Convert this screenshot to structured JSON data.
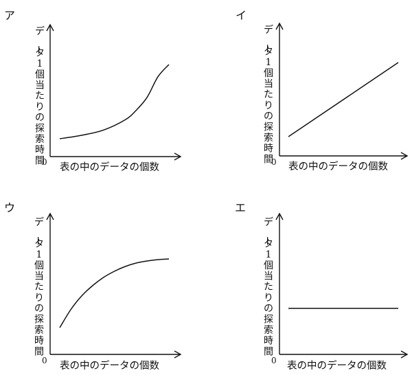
{
  "chart_data": [
    {
      "panel": "ア",
      "type": "line",
      "curve": "exponential-increase",
      "xlabel": "表の中のデータの個数",
      "ylabel": "データ1個当たりの探索時間",
      "origin": "0",
      "x": [
        0,
        0.2,
        0.4,
        0.6,
        0.7,
        0.8,
        0.9,
        1.0
      ],
      "y": [
        0.14,
        0.18,
        0.24,
        0.36,
        0.47,
        0.62,
        0.86,
        1.0
      ]
    },
    {
      "panel": "イ",
      "type": "line",
      "curve": "linear-increase",
      "xlabel": "表の中のデータの個数",
      "ylabel": "データ1個当たりの探索時間",
      "origin": "0",
      "x": [
        0,
        1.0
      ],
      "y": [
        0.13,
        1.0
      ]
    },
    {
      "panel": "ウ",
      "type": "line",
      "curve": "logarithmic-increase",
      "xlabel": "表の中のデータの個数",
      "ylabel": "データ1個当たりの探索時間",
      "origin": "0",
      "x": [
        0,
        0.1,
        0.2,
        0.3,
        0.4,
        0.5,
        0.6,
        0.7,
        0.8,
        0.9,
        1.0
      ],
      "y": [
        0.0,
        0.26,
        0.46,
        0.61,
        0.73,
        0.82,
        0.89,
        0.94,
        0.97,
        0.99,
        1.0
      ]
    },
    {
      "panel": "エ",
      "type": "line",
      "curve": "constant",
      "xlabel": "表の中のデータの個数",
      "ylabel": "データ1個当たりの探索時間",
      "origin": "0",
      "x": [
        0,
        1.0
      ],
      "y": [
        0.5,
        0.5
      ]
    }
  ]
}
